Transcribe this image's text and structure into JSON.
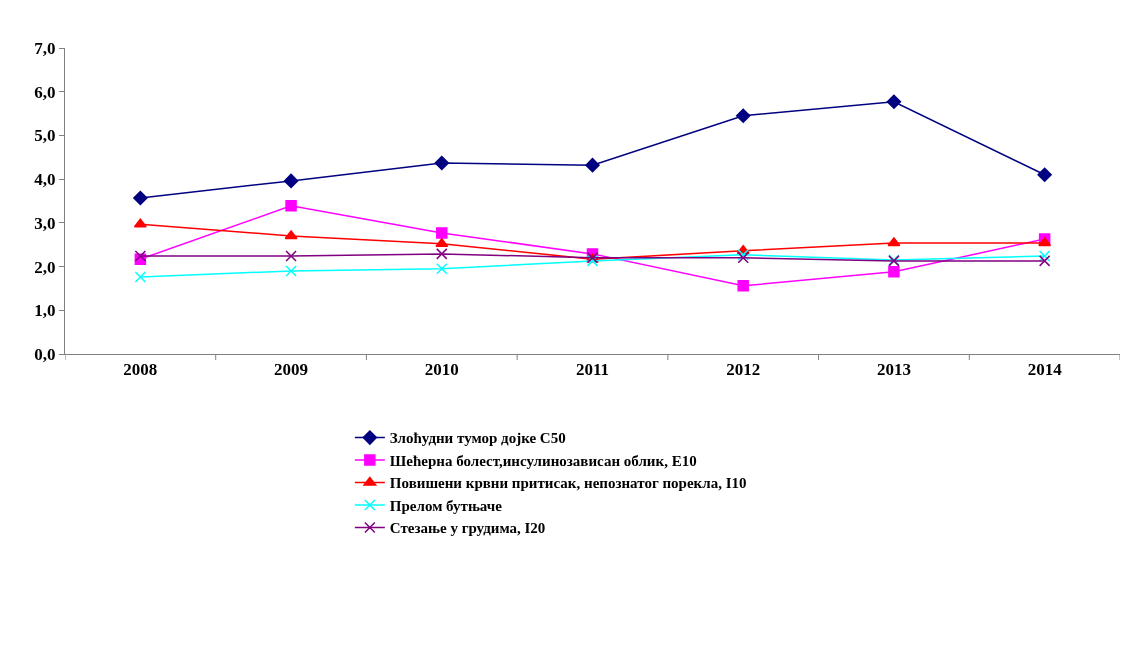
{
  "chart_data": {
    "type": "line",
    "categories": [
      "2008",
      "2009",
      "2010",
      "2011",
      "2012",
      "2013",
      "2014"
    ],
    "series": [
      {
        "name": "Злоћудни тумор дојке C50",
        "color": "#000080",
        "marker": "diamond",
        "values": [
          3.57,
          3.96,
          4.37,
          4.32,
          5.45,
          5.77,
          4.1
        ]
      },
      {
        "name": "Шећерна болест,инсулинозависан облик, Е10",
        "color": "#ff00ff",
        "marker": "square",
        "values": [
          2.17,
          3.39,
          2.77,
          2.29,
          1.56,
          1.88,
          2.63
        ]
      },
      {
        "name": "Повишени крвни притисак, непознатог порекла, I10",
        "color": "#ff0000",
        "marker": "triangle",
        "values": [
          2.97,
          2.7,
          2.52,
          2.17,
          2.36,
          2.54,
          2.54
        ]
      },
      {
        "name": "Прелом бутњаче",
        "color": "#00ffff",
        "marker": "cross",
        "values": [
          1.76,
          1.9,
          1.95,
          2.13,
          2.27,
          2.15,
          2.24
        ]
      },
      {
        "name": "Стезање у грудима, I20",
        "color": "#800080",
        "marker": "cross",
        "values": [
          2.24,
          2.24,
          2.29,
          2.2,
          2.2,
          2.13,
          2.13
        ]
      }
    ],
    "ylim": [
      0,
      7
    ],
    "yticks": [
      {
        "value": 0,
        "label": "0,0"
      },
      {
        "value": 1,
        "label": "1,0"
      },
      {
        "value": 2,
        "label": "2,0"
      },
      {
        "value": 3,
        "label": "3,0"
      },
      {
        "value": 4,
        "label": "4,0"
      },
      {
        "value": 5,
        "label": "5,0"
      },
      {
        "value": 6,
        "label": "6,0"
      },
      {
        "value": 7,
        "label": "7,0"
      }
    ],
    "legend": "bottom",
    "line_style": "solid"
  }
}
